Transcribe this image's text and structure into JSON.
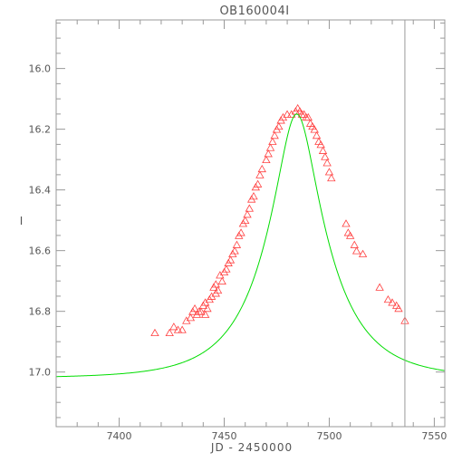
{
  "chart_data": {
    "type": "scatter",
    "title": "OB160004I",
    "xlabel": "JD - 2450000",
    "ylabel": "I",
    "xlim": [
      7370,
      7555
    ],
    "ylim": [
      17.18,
      15.84
    ],
    "y_inverted": true,
    "x_ticks": [
      7400,
      7450,
      7500,
      7550
    ],
    "x_tick_labels": [
      "7400",
      "7450",
      "7500",
      "7550"
    ],
    "y_ticks": [
      16.0,
      16.2,
      16.4,
      16.6,
      16.8,
      17.0
    ],
    "y_tick_labels": [
      "16.0",
      "16.2",
      "16.4",
      "16.6",
      "16.8",
      "17.0"
    ],
    "grid": false,
    "vertical_line_x": 7536,
    "colors": {
      "points": "#ff4040",
      "model": "#00dd00",
      "axes": "#999999",
      "vline": "#999999",
      "text": "#555555"
    },
    "series": [
      {
        "kind": "points",
        "marker": "triangle-open",
        "x": [
          7417,
          7424,
          7426,
          7428,
          7430,
          7432,
          7434,
          7435,
          7436,
          7437,
          7438,
          7439,
          7440,
          7441,
          7441,
          7442,
          7443,
          7444,
          7445,
          7446,
          7446,
          7447,
          7448,
          7449,
          7450,
          7451,
          7452,
          7453,
          7454,
          7455,
          7456,
          7457,
          7458,
          7459,
          7460,
          7461,
          7462,
          7463,
          7464,
          7465,
          7466,
          7467,
          7468,
          7470,
          7471,
          7472,
          7473,
          7474,
          7475,
          7476,
          7477,
          7478,
          7480,
          7482,
          7484,
          7485,
          7486,
          7487,
          7488,
          7489,
          7490,
          7491,
          7492,
          7493,
          7494,
          7495,
          7496,
          7497,
          7498,
          7499,
          7500,
          7501,
          7508,
          7509,
          7510,
          7512,
          7513,
          7516,
          7524,
          7528,
          7530,
          7532,
          7533,
          7536
        ],
        "y": [
          16.87,
          16.87,
          16.85,
          16.86,
          16.86,
          16.83,
          16.82,
          16.8,
          16.79,
          16.81,
          16.8,
          16.8,
          16.78,
          16.81,
          16.77,
          16.79,
          16.76,
          16.75,
          16.72,
          16.74,
          16.71,
          16.73,
          16.68,
          16.7,
          16.67,
          16.66,
          16.64,
          16.63,
          16.61,
          16.6,
          16.58,
          16.55,
          16.54,
          16.51,
          16.5,
          16.48,
          16.46,
          16.43,
          16.42,
          16.39,
          16.38,
          16.35,
          16.33,
          16.3,
          16.28,
          16.26,
          16.24,
          16.22,
          16.2,
          16.19,
          16.17,
          16.16,
          16.15,
          16.15,
          16.14,
          16.13,
          16.14,
          16.15,
          16.15,
          16.16,
          16.16,
          16.18,
          16.19,
          16.2,
          16.22,
          16.24,
          16.25,
          16.27,
          16.29,
          16.31,
          16.34,
          16.36,
          16.51,
          16.54,
          16.55,
          16.58,
          16.6,
          16.61,
          16.72,
          16.76,
          16.77,
          16.78,
          16.79,
          16.83
        ]
      },
      {
        "kind": "line",
        "model": "paczynski",
        "t0": 7484.5,
        "tE": 30,
        "u0": 0.29,
        "baseline": 17.02,
        "peak": 16.15
      }
    ]
  }
}
